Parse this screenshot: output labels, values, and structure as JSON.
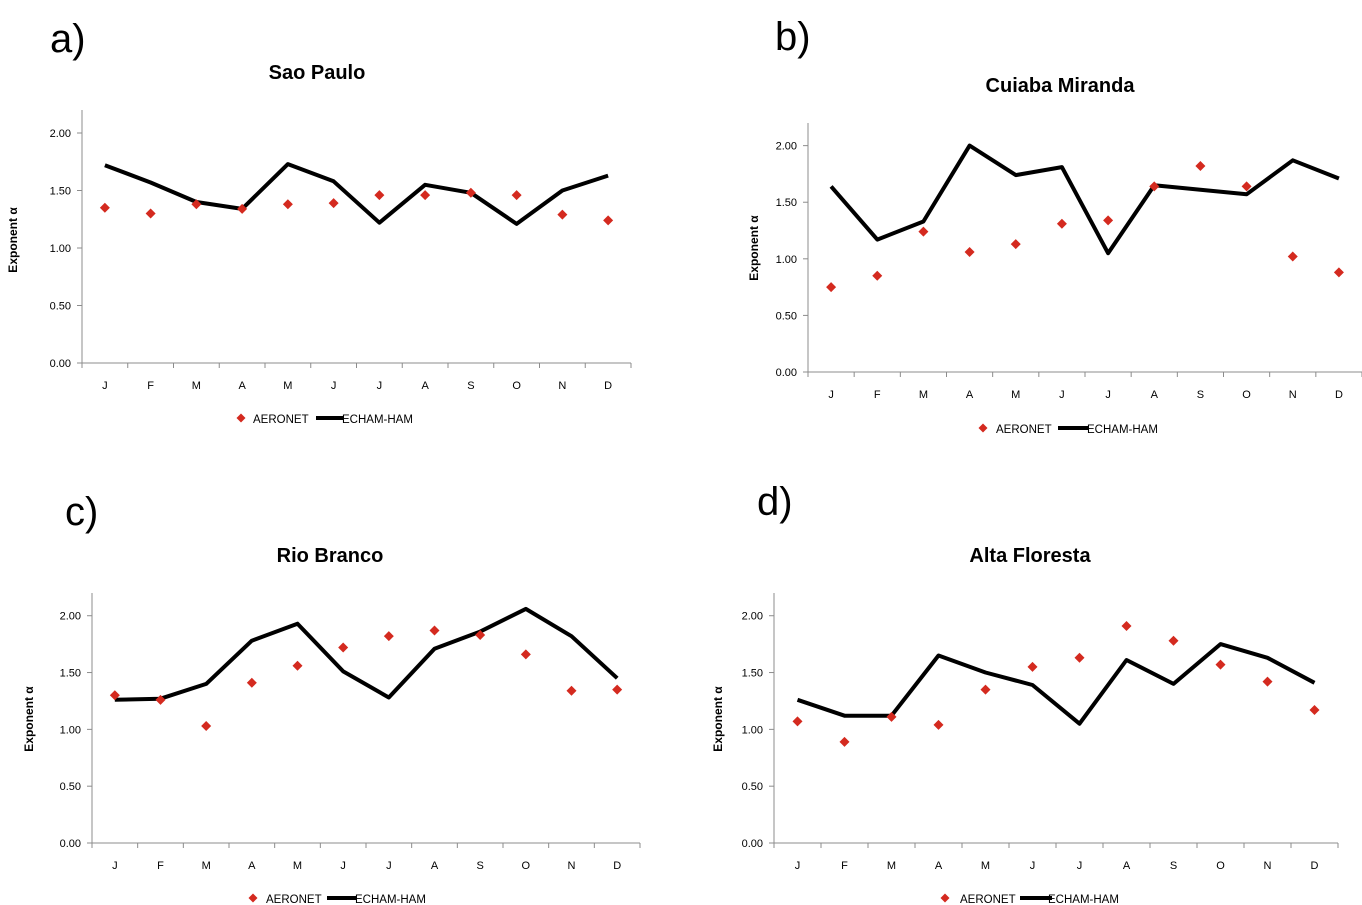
{
  "chart_data": [
    {
      "type": "line",
      "panel_label": "a)",
      "title": "Sao Paulo",
      "xlabel": "",
      "ylabel": "Exponent α",
      "categories": [
        "J",
        "F",
        "M",
        "A",
        "M",
        "J",
        "J",
        "A",
        "S",
        "O",
        "N",
        "D"
      ],
      "ylim": [
        0,
        2.2
      ],
      "yticks": [
        "0.00",
        "0.50",
        "1.00",
        "1.50",
        "2.00"
      ],
      "grid": false,
      "legend_position": "bottom",
      "series": [
        {
          "name": "AERONET",
          "style": "marker",
          "values": [
            1.35,
            1.3,
            1.38,
            1.34,
            1.38,
            1.39,
            1.46,
            1.46,
            1.48,
            1.46,
            1.29,
            1.24
          ]
        },
        {
          "name": "ECHAM-HAM",
          "style": "line",
          "values": [
            1.72,
            1.57,
            1.4,
            1.34,
            1.73,
            1.58,
            1.22,
            1.55,
            1.48,
            1.21,
            1.5,
            1.63
          ]
        }
      ]
    },
    {
      "type": "line",
      "panel_label": "b)",
      "title": "Cuiaba Miranda",
      "xlabel": "",
      "ylabel": "Exponent α",
      "categories": [
        "J",
        "F",
        "M",
        "A",
        "M",
        "J",
        "J",
        "A",
        "S",
        "O",
        "N",
        "D"
      ],
      "ylim": [
        0,
        2.2
      ],
      "yticks": [
        "0.00",
        "0.50",
        "1.00",
        "1.50",
        "2.00"
      ],
      "grid": false,
      "legend_position": "bottom",
      "series": [
        {
          "name": "AERONET",
          "style": "marker",
          "values": [
            0.75,
            0.85,
            1.24,
            1.06,
            1.13,
            1.31,
            1.34,
            1.64,
            1.82,
            1.64,
            1.02,
            0.88
          ]
        },
        {
          "name": "ECHAM-HAM",
          "style": "line",
          "values": [
            1.64,
            1.17,
            1.33,
            2.0,
            1.74,
            1.81,
            1.05,
            1.65,
            1.61,
            1.57,
            1.87,
            1.71
          ]
        }
      ]
    },
    {
      "type": "line",
      "panel_label": "c)",
      "title": "Rio Branco",
      "xlabel": "",
      "ylabel": "Exponent α",
      "categories": [
        "J",
        "F",
        "M",
        "A",
        "M",
        "J",
        "J",
        "A",
        "S",
        "O",
        "N",
        "D"
      ],
      "ylim": [
        0,
        2.2
      ],
      "yticks": [
        "0.00",
        "0.50",
        "1.00",
        "1.50",
        "2.00"
      ],
      "grid": false,
      "legend_position": "bottom",
      "series": [
        {
          "name": "AERONET",
          "style": "marker",
          "values": [
            1.3,
            1.26,
            1.03,
            1.41,
            1.56,
            1.72,
            1.82,
            1.87,
            1.83,
            1.66,
            1.34,
            1.35
          ]
        },
        {
          "name": "ECHAM-HAM",
          "style": "line",
          "values": [
            1.26,
            1.27,
            1.4,
            1.78,
            1.93,
            1.51,
            1.28,
            1.71,
            1.86,
            2.06,
            1.82,
            1.45
          ]
        }
      ]
    },
    {
      "type": "line",
      "panel_label": "d)",
      "title": "Alta Floresta",
      "xlabel": "",
      "ylabel": "Exponent α",
      "categories": [
        "J",
        "F",
        "M",
        "A",
        "M",
        "J",
        "J",
        "A",
        "S",
        "O",
        "N",
        "D"
      ],
      "ylim": [
        0,
        2.2
      ],
      "yticks": [
        "0.00",
        "0.50",
        "1.00",
        "1.50",
        "2.00"
      ],
      "grid": false,
      "legend_position": "bottom",
      "series": [
        {
          "name": "AERONET",
          "style": "marker",
          "values": [
            1.07,
            0.89,
            1.11,
            1.04,
            1.35,
            1.55,
            1.63,
            1.91,
            1.78,
            1.57,
            1.42,
            1.17
          ]
        },
        {
          "name": "ECHAM-HAM",
          "style": "line",
          "values": [
            1.26,
            1.12,
            1.12,
            1.65,
            1.5,
            1.39,
            1.05,
            1.61,
            1.4,
            1.75,
            1.63,
            1.41
          ]
        }
      ]
    }
  ],
  "colors": {
    "aeronet": "#d42a1f",
    "echam": "#000000",
    "axis": "#8c8c8c"
  }
}
